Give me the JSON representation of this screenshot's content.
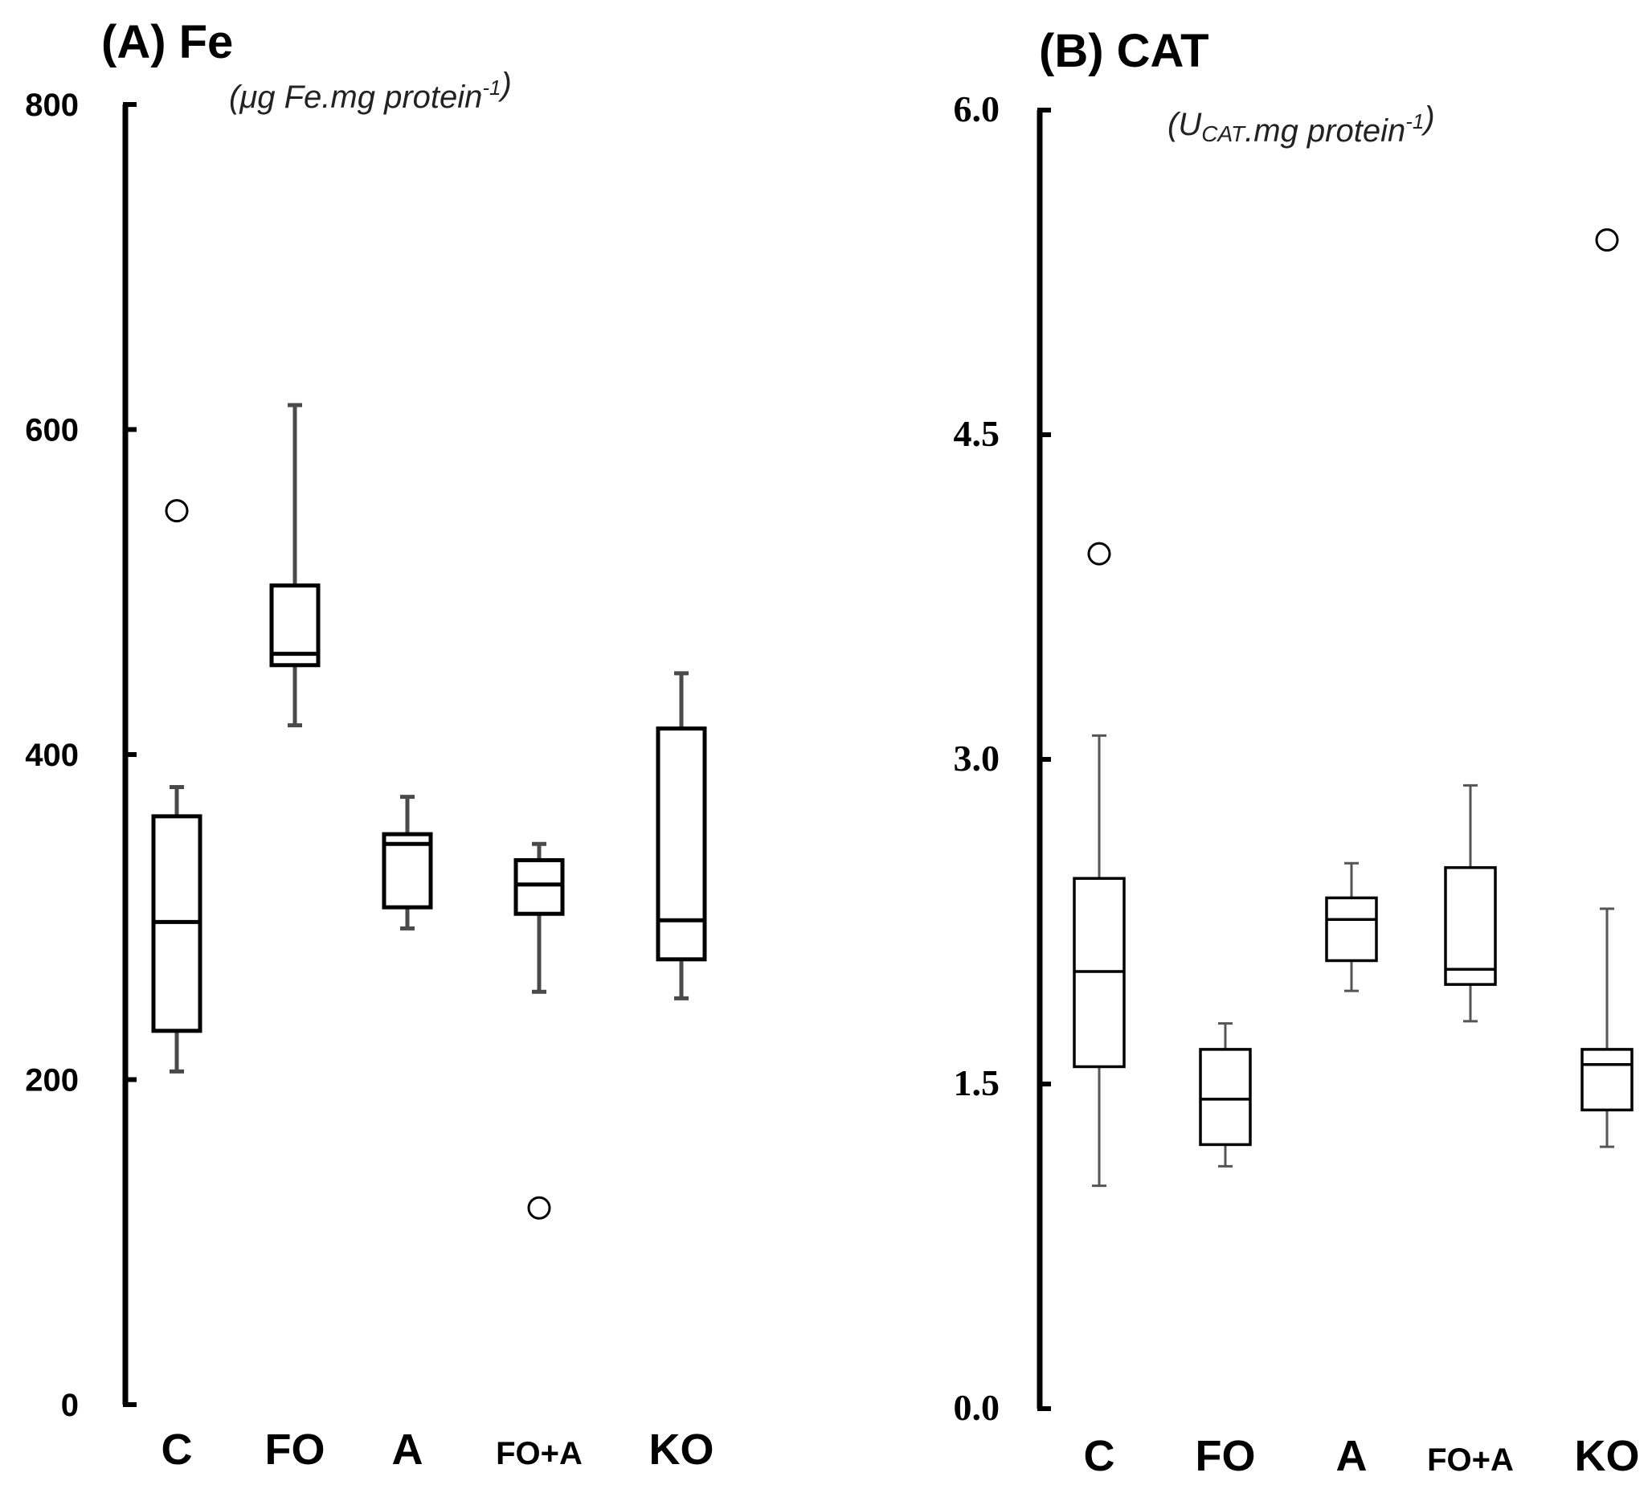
{
  "chart_data": [
    {
      "type": "box",
      "title": "(A) Fe",
      "unit_label": {
        "prefix": "(",
        "main": "μg Fe.mg protein",
        "sub": "",
        "tail": "",
        "sup": "-1",
        "suffix": ")"
      },
      "categories": [
        "C",
        "FO",
        "A",
        "FO+A",
        "KO"
      ],
      "ylim": [
        0,
        800
      ],
      "yticks": [
        0,
        200,
        400,
        600,
        800
      ],
      "ytick_labels": [
        "0",
        "200",
        "400",
        "600",
        "800"
      ],
      "boxes": [
        {
          "category": "C",
          "whisker_low": 205,
          "q1": 230,
          "median": 297,
          "q3": 362,
          "whisker_high": 380,
          "outliers": [
            550
          ]
        },
        {
          "category": "FO",
          "whisker_low": 418,
          "q1": 455,
          "median": 462,
          "q3": 504,
          "whisker_high": 615,
          "outliers": []
        },
        {
          "category": "A",
          "whisker_low": 293,
          "q1": 306,
          "median": 345,
          "q3": 351,
          "whisker_high": 374,
          "outliers": []
        },
        {
          "category": "FO+A",
          "whisker_low": 254,
          "q1": 302,
          "median": 320,
          "q3": 335,
          "whisker_high": 345,
          "outliers": [
            121
          ]
        },
        {
          "category": "KO",
          "whisker_low": 250,
          "q1": 274,
          "median": 298,
          "q3": 416,
          "whisker_high": 450,
          "outliers": []
        }
      ]
    },
    {
      "type": "box",
      "title": "(B) CAT",
      "unit_label": {
        "prefix": "(",
        "main": "U",
        "sub": "CAT",
        "tail": ".mg protein",
        "sup": "-1",
        "suffix": ")"
      },
      "categories": [
        "C",
        "FO",
        "A",
        "FO+A",
        "KO"
      ],
      "ylim": [
        0,
        6
      ],
      "yticks": [
        0,
        1.5,
        3,
        4.5,
        6
      ],
      "ytick_labels": [
        "0.0",
        "1.5",
        "3.0",
        "4.5",
        "6.0"
      ],
      "boxes": [
        {
          "category": "C",
          "whisker_low": 1.03,
          "q1": 1.58,
          "median": 2.02,
          "q3": 2.45,
          "whisker_high": 3.11,
          "outliers": [
            3.95
          ]
        },
        {
          "category": "FO",
          "whisker_low": 1.12,
          "q1": 1.22,
          "median": 1.43,
          "q3": 1.66,
          "whisker_high": 1.78,
          "outliers": []
        },
        {
          "category": "A",
          "whisker_low": 1.93,
          "q1": 2.07,
          "median": 2.26,
          "q3": 2.36,
          "whisker_high": 2.52,
          "outliers": []
        },
        {
          "category": "FO+A",
          "whisker_low": 1.79,
          "q1": 1.96,
          "median": 2.03,
          "q3": 2.5,
          "whisker_high": 2.88,
          "outliers": []
        },
        {
          "category": "KO",
          "whisker_low": 1.21,
          "q1": 1.38,
          "median": 1.59,
          "q3": 1.66,
          "whisker_high": 2.31,
          "outliers": [
            5.4
          ]
        }
      ]
    }
  ]
}
